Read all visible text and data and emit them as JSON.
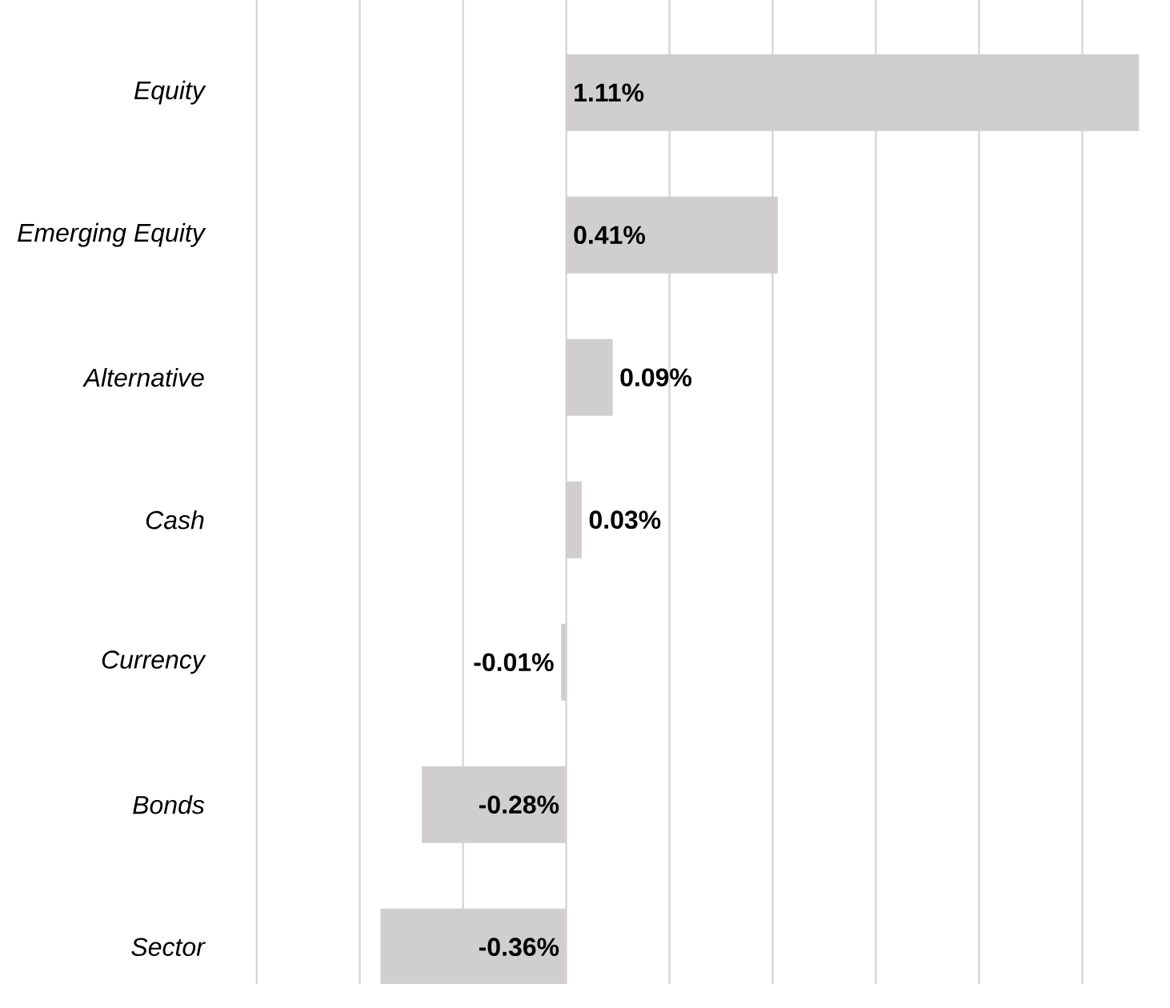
{
  "chart_data": {
    "type": "bar",
    "orientation": "horizontal",
    "categories": [
      "Equity",
      "Emerging Equity",
      "Alternative",
      "Cash",
      "Currency",
      "Bonds",
      "Sector"
    ],
    "values": [
      1.11,
      0.41,
      0.09,
      0.03,
      -0.01,
      -0.28,
      -0.36
    ],
    "value_labels": [
      "1.11%",
      "0.41%",
      "0.09%",
      "0.03%",
      "-0.01%",
      "-0.28%",
      "-0.36%"
    ],
    "color": "#d0cece",
    "xticks": [
      {
        "value": -0.6,
        "label": null
      },
      {
        "value": -0.4,
        "label": null
      },
      {
        "value": -0.2,
        "label": null
      },
      {
        "value": 0,
        "label": null
      },
      {
        "value": 0.2,
        "label": null
      },
      {
        "value": 0.4,
        "label": null
      },
      {
        "value": 0.6,
        "label": null
      },
      {
        "value": 0.8,
        "label": null
      },
      {
        "value": 1.0,
        "label": null
      }
    ],
    "grid": "x",
    "tick_labels": "y"
  }
}
